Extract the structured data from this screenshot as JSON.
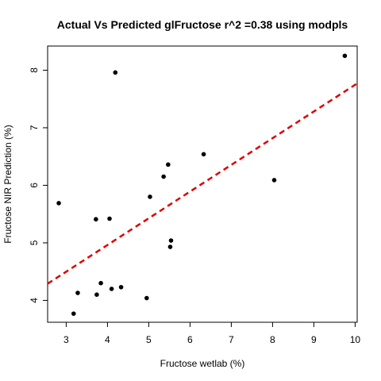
{
  "chart_data": {
    "type": "scatter",
    "title": "Actual Vs Predicted glFructose r^2 =0.38 using modpls",
    "xlabel": "Fructose wetlab (%)",
    "ylabel": "Fructose NIR Prediction (%)",
    "xlim": [
      2.55,
      10.05
    ],
    "ylim": [
      3.62,
      8.42
    ],
    "xticks": [
      3,
      4,
      5,
      6,
      7,
      8,
      9,
      10
    ],
    "yticks": [
      4,
      5,
      6,
      7,
      8
    ],
    "grid": false,
    "points": [
      {
        "x": 2.82,
        "y": 5.69
      },
      {
        "x": 3.18,
        "y": 3.77
      },
      {
        "x": 3.28,
        "y": 4.13
      },
      {
        "x": 3.72,
        "y": 5.41
      },
      {
        "x": 3.74,
        "y": 4.1
      },
      {
        "x": 3.84,
        "y": 4.3
      },
      {
        "x": 4.05,
        "y": 5.42
      },
      {
        "x": 4.1,
        "y": 4.2
      },
      {
        "x": 4.19,
        "y": 7.96
      },
      {
        "x": 4.33,
        "y": 4.23
      },
      {
        "x": 4.95,
        "y": 4.04
      },
      {
        "x": 5.03,
        "y": 5.8
      },
      {
        "x": 5.36,
        "y": 6.15
      },
      {
        "x": 5.47,
        "y": 6.36
      },
      {
        "x": 5.52,
        "y": 4.93
      },
      {
        "x": 5.54,
        "y": 5.04
      },
      {
        "x": 6.33,
        "y": 6.54
      },
      {
        "x": 8.04,
        "y": 6.09
      },
      {
        "x": 9.75,
        "y": 8.25
      }
    ],
    "fit_line": {
      "x": [
        2.55,
        10.05
      ],
      "y": [
        4.29,
        7.77
      ],
      "color": "#dd0000",
      "style": "dashed"
    },
    "point_color": "#000000"
  }
}
